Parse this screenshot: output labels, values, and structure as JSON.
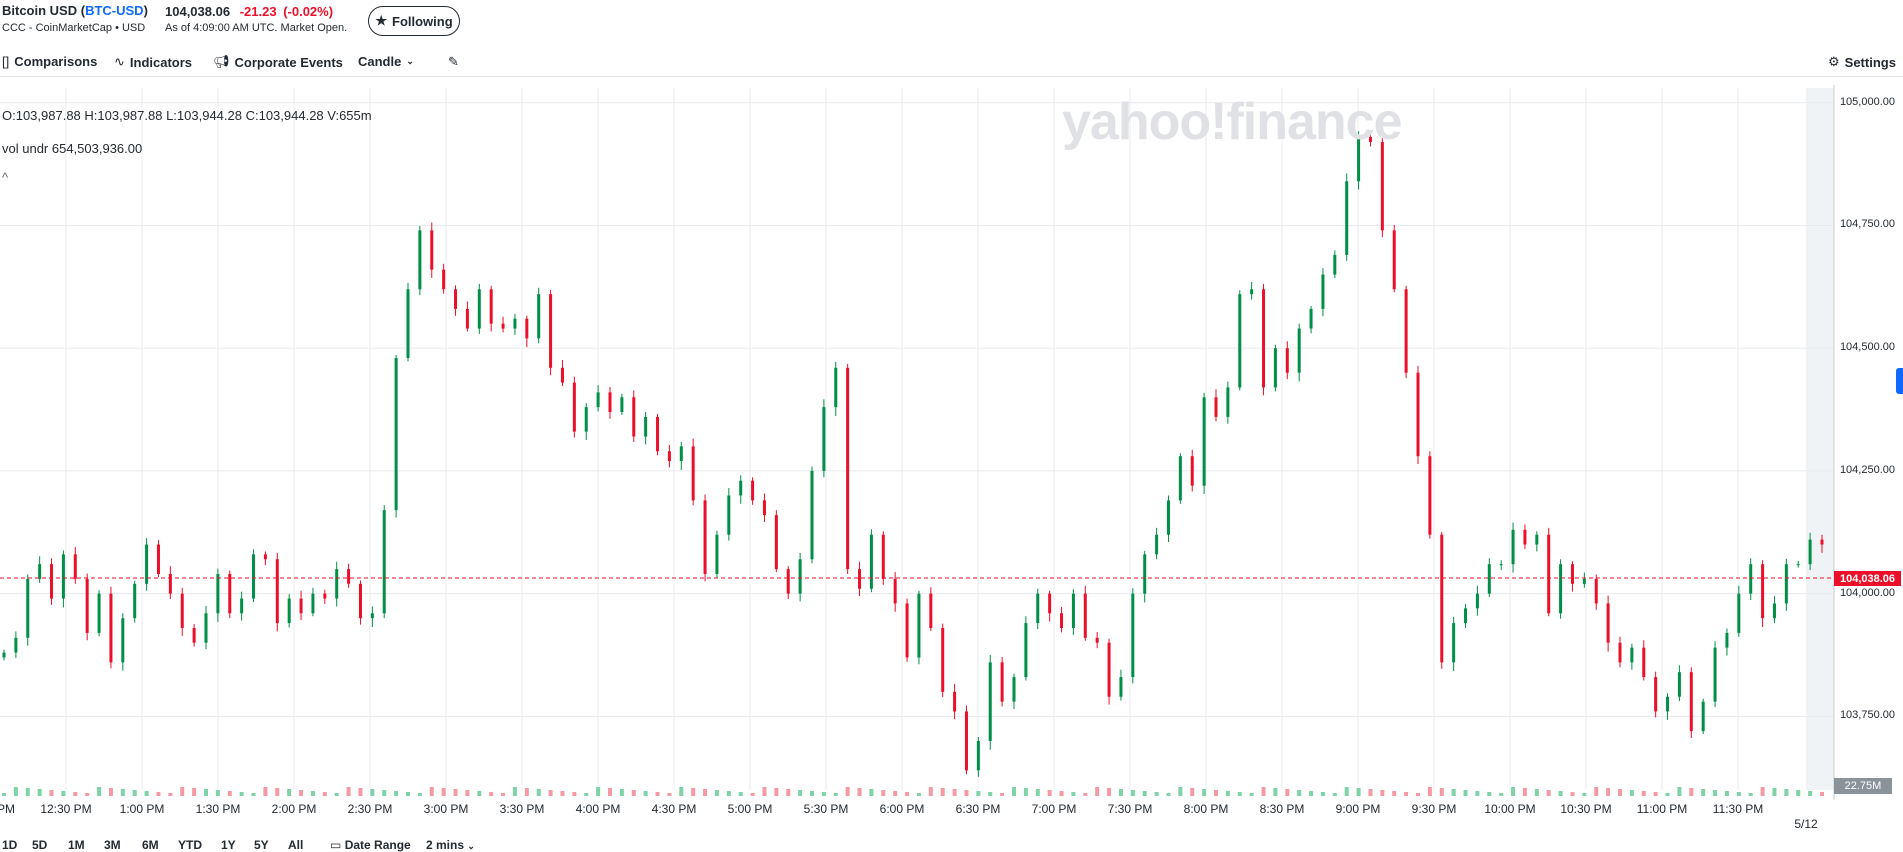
{
  "header": {
    "name": "Bitcoin USD",
    "ticker": "BTC-USD",
    "source": "CCC - CoinMarketCap • USD",
    "price": "104,038.06",
    "change": "-21.23",
    "change_pct": "(-0.02%)",
    "as_of": "As of 4:09:00 AM UTC. Market Open.",
    "follow_label": "Following"
  },
  "toolbar": {
    "comparisons": "Comparisons",
    "indicators": "Indicators",
    "corporate_events": "Corporate Events",
    "chart_type": "Candle",
    "settings": "Settings"
  },
  "legend": {
    "ohlcv": "O:103,987.88  H:103,987.88  L:103,944.28  C:103,944.28  V:655m",
    "vol_undr": "vol undr  654,503,936.00",
    "collapse": "^"
  },
  "watermark": "yahoo!finance",
  "range_buttons": [
    "1D",
    "5D",
    "1M",
    "3M",
    "6M",
    "YTD",
    "1Y",
    "5Y",
    "All"
  ],
  "date_range": "Date Range",
  "interval": "2 mins",
  "colors": {
    "up": "#008f47",
    "down": "#eb0f29",
    "vol_up": "#7fd3a8",
    "vol_down": "#f59aa5"
  },
  "chart_data": {
    "type": "candlestick",
    "ylim": [
      103600,
      105030
    ],
    "y_ticks": [
      "105,000.00",
      "104,750.00",
      "104,500.00",
      "104,250.00",
      "104,000.00",
      "103,750.00"
    ],
    "x_ticks": [
      "PM",
      "12:30 PM",
      "1:00 PM",
      "1:30 PM",
      "2:00 PM",
      "2:30 PM",
      "3:00 PM",
      "3:30 PM",
      "4:00 PM",
      "4:30 PM",
      "5:00 PM",
      "5:30 PM",
      "6:00 PM",
      "6:30 PM",
      "7:00 PM",
      "7:30 PM",
      "8:00 PM",
      "8:30 PM",
      "9:00 PM",
      "9:30 PM",
      "10:00 PM",
      "10:30 PM",
      "11:00 PM",
      "11:30 PM"
    ],
    "next_day_label": "5/12",
    "last_price": 104038.06,
    "last_price_label": "104,038.06",
    "volume_label": "22.75M",
    "close_series": [
      103880,
      103910,
      104030,
      104060,
      103990,
      104080,
      104030,
      103920,
      104000,
      103860,
      103950,
      104020,
      104100,
      104040,
      104000,
      103930,
      103900,
      103960,
      104040,
      103960,
      103990,
      104080,
      104070,
      103940,
      103990,
      103960,
      104000,
      103990,
      104050,
      104020,
      103950,
      103960,
      104170,
      104480,
      104620,
      104740,
      104660,
      104620,
      104580,
      104540,
      104620,
      104550,
      104540,
      104560,
      104520,
      104610,
      104460,
      104430,
      104330,
      104380,
      104410,
      104370,
      104400,
      104320,
      104360,
      104290,
      104270,
      104300,
      104190,
      104040,
      104120,
      104200,
      104230,
      104190,
      104160,
      104050,
      104000,
      104070,
      104250,
      104380,
      104460,
      104050,
      104010,
      104120,
      104030,
      103980,
      103870,
      104000,
      103930,
      103800,
      103760,
      103640,
      103700,
      103860,
      103780,
      103830,
      103940,
      104000,
      103960,
      103930,
      104000,
      103910,
      103900,
      103790,
      103830,
      104000,
      104080,
      104120,
      104190,
      104280,
      104220,
      104400,
      104360,
      104420,
      104610,
      104620,
      104420,
      104500,
      104450,
      104540,
      104580,
      104650,
      104690,
      104840,
      104930,
      104920,
      104740,
      104620,
      104450,
      104280,
      104120,
      103860,
      103940,
      103970,
      104000,
      104060,
      104060,
      104130,
      104100,
      104120,
      103960,
      104060,
      104020,
      104030,
      103980,
      103900,
      103860,
      103890,
      103830,
      103760,
      103790,
      103840,
      103720,
      103780,
      103890,
      103920,
      104000,
      104060,
      103950,
      103980,
      104060,
      104060,
      104110,
      104100
    ]
  }
}
